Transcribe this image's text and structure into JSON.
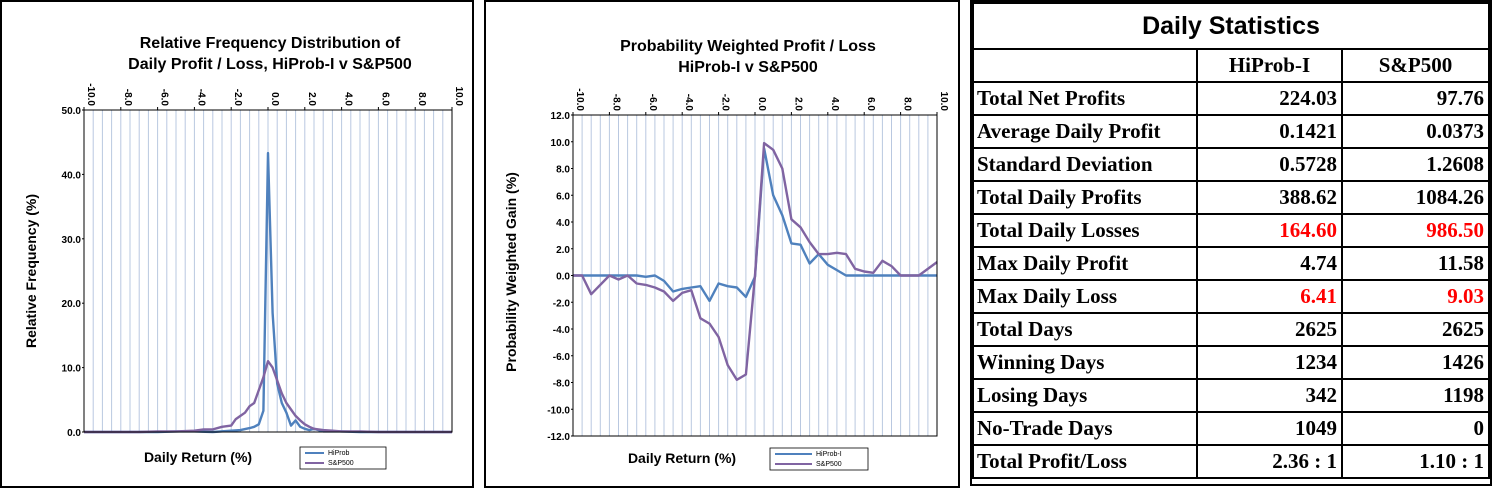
{
  "chart_data": [
    {
      "type": "line",
      "title": "Relative Frequency Distribution    of Daily Profit / Loss,  HiProb-I v S&P500",
      "title_lines": [
        "Relative  Frequency  Distribution    of",
        "Daily Profit / Loss,  HiProb-I v S&P500"
      ],
      "xlabel": "Daily Return  (%)",
      "ylabel": "Relative  Frequency  (%)",
      "xlim": [
        -10,
        10
      ],
      "ylim": [
        0,
        50
      ],
      "x_ticks": [
        "-10.0",
        "-8.0",
        "-6.0",
        "-4.0",
        "-2.0",
        "0.0",
        "2.0",
        "4.0",
        "6.0",
        "8.0",
        "10.0"
      ],
      "y_ticks": [
        "0.0",
        "10.0",
        "20.0",
        "30.0",
        "40.0",
        "50.0"
      ],
      "y_tick_values": [
        0,
        10,
        20,
        30,
        40,
        50
      ],
      "grid": "vertical",
      "legend": "bottom-right",
      "series": [
        {
          "name": "HiProb",
          "color": "#4f81bd",
          "x": [
            -10,
            -6,
            -5,
            -4,
            -3,
            -2,
            -1.5,
            -1,
            -0.75,
            -0.5,
            -0.25,
            0,
            0.25,
            0.5,
            0.75,
            1,
            1.25,
            1.5,
            1.75,
            2,
            2.25,
            2.5,
            3,
            4,
            5,
            10
          ],
          "y": [
            0,
            0,
            0.1,
            0.1,
            0,
            0.2,
            0.3,
            0.6,
            0.8,
            1.2,
            3.3,
            43.3,
            18.5,
            7.5,
            4.5,
            3.0,
            1.0,
            1.8,
            0.8,
            0.5,
            0.3,
            0.5,
            0.1,
            0.1,
            0,
            0
          ]
        },
        {
          "name": "S&P500",
          "color": "#8064a2",
          "x": [
            -10,
            -7,
            -6,
            -5,
            -4,
            -3.5,
            -3,
            -2.5,
            -2,
            -1.75,
            -1.5,
            -1.25,
            -1,
            -0.75,
            -0.5,
            -0.25,
            0,
            0.25,
            0.5,
            0.75,
            1,
            1.25,
            1.5,
            1.75,
            2,
            2.25,
            2.5,
            2.75,
            3,
            3.5,
            4,
            5,
            6,
            10
          ],
          "y": [
            0,
            0,
            0.1,
            0.1,
            0.2,
            0.4,
            0.4,
            0.8,
            1.0,
            2.0,
            2.5,
            3.0,
            4.0,
            4.5,
            6.5,
            8.5,
            11.0,
            10.0,
            8.0,
            6.0,
            4.5,
            3.5,
            2.5,
            1.8,
            1.2,
            0.8,
            0.5,
            0.4,
            0.3,
            0.2,
            0.1,
            0.1,
            0,
            0
          ]
        }
      ]
    },
    {
      "type": "line",
      "title": "Probability Weighted Profit /  Loss HiProb-I   v   S&P500",
      "title_lines": [
        "Probability Weighted Profit /  Loss",
        "HiProb-I   v   S&P500"
      ],
      "xlabel": "Daily Return  (%)",
      "ylabel": "Probability Weighted Gain (%)",
      "xlim": [
        -10,
        10
      ],
      "ylim": [
        -12,
        12
      ],
      "x_ticks": [
        "-10.0",
        "-8.0",
        "-6.0",
        "-4.0",
        "-2.0",
        "0.0",
        "2.0",
        "4.0",
        "6.0",
        "8.0",
        "10.0"
      ],
      "y_ticks": [
        "-12.0",
        "-10.0",
        "-8.0",
        "-6.0",
        "-4.0",
        "-2.0",
        "0.0",
        "2.0",
        "4.0",
        "6.0",
        "8.0",
        "10.0",
        "12.0"
      ],
      "y_tick_values": [
        -12,
        -10,
        -8,
        -6,
        -4,
        -2,
        0,
        2,
        4,
        6,
        8,
        10,
        12
      ],
      "grid": "vertical",
      "legend": "bottom-right",
      "series": [
        {
          "name": "HiProb-I",
          "color": "#4f81bd",
          "x": [
            -10,
            -9,
            -8,
            -7,
            -6.5,
            -6,
            -5.5,
            -5,
            -4.5,
            -4,
            -3.5,
            -3,
            -2.5,
            -2,
            -1.5,
            -1,
            -0.5,
            0,
            0.5,
            1,
            1.5,
            2,
            2.5,
            3,
            3.5,
            4,
            4.5,
            5,
            5.5,
            6,
            7,
            8,
            9,
            10
          ],
          "y": [
            0,
            0,
            0,
            0,
            0,
            -0.1,
            0,
            -0.4,
            -1.2,
            -1.0,
            -0.9,
            -0.8,
            -1.9,
            -0.6,
            -0.8,
            -0.9,
            -1.6,
            -0.1,
            9.5,
            6.0,
            4.5,
            2.4,
            2.3,
            0.9,
            1.6,
            0.8,
            0.4,
            0,
            0,
            0,
            0,
            0,
            0,
            0
          ]
        },
        {
          "name": "S&P500",
          "color": "#8064a2",
          "x": [
            -10,
            -9.5,
            -9,
            -8,
            -7.5,
            -7,
            -6.5,
            -6,
            -5.5,
            -5,
            -4.5,
            -4,
            -3.5,
            -3,
            -2.5,
            -2,
            -1.5,
            -1,
            -0.5,
            0,
            0.5,
            1,
            1.5,
            2,
            2.5,
            3,
            3.5,
            4,
            4.5,
            5,
            5.5,
            6,
            6.5,
            7,
            7.5,
            8,
            9,
            10
          ],
          "y": [
            0,
            0,
            -1.4,
            0,
            -0.3,
            0,
            -0.6,
            -0.7,
            -0.9,
            -1.2,
            -1.9,
            -1.3,
            -1.1,
            -3.2,
            -3.6,
            -4.6,
            -6.7,
            -7.8,
            -7.4,
            0,
            9.9,
            9.4,
            8.0,
            4.2,
            3.6,
            2.5,
            1.6,
            1.6,
            1.7,
            1.6,
            0.5,
            0.3,
            0.2,
            1.1,
            0.7,
            0,
            0,
            1.0
          ]
        }
      ]
    }
  ],
  "stats_table": {
    "title": "Daily Statistics",
    "columns": [
      "HiProb-I",
      "S&P500"
    ],
    "red_color": "#ff0000",
    "rows": [
      {
        "label": "Total Net Profits",
        "values": [
          "224.03",
          "97.76"
        ],
        "red": false
      },
      {
        "label": "Average Daily Profit",
        "values": [
          "0.1421",
          "0.0373"
        ],
        "red": false
      },
      {
        "label": "Standard Deviation",
        "values": [
          "0.5728",
          "1.2608"
        ],
        "red": false
      },
      {
        "label": "Total Daily Profits",
        "values": [
          "388.62",
          "1084.26"
        ],
        "red": false
      },
      {
        "label": "Total Daily Losses",
        "values": [
          "164.60",
          "986.50"
        ],
        "red": true
      },
      {
        "label": "Max Daily Profit",
        "values": [
          "4.74",
          "11.58"
        ],
        "red": false
      },
      {
        "label": "Max Daily Loss",
        "values": [
          "6.41",
          "9.03"
        ],
        "red": true
      },
      {
        "label": "Total Days",
        "values": [
          "2625",
          "2625"
        ],
        "red": false
      },
      {
        "label": "Winning Days",
        "values": [
          "1234",
          "1426"
        ],
        "red": false
      },
      {
        "label": "Losing Days",
        "values": [
          "342",
          "1198"
        ],
        "red": false
      },
      {
        "label": "No-Trade Days",
        "values": [
          "1049",
          "0"
        ],
        "red": false
      },
      {
        "label": "Total Profit/Loss",
        "values": [
          "2.36 : 1",
          "1.10 : 1"
        ],
        "red": false
      }
    ]
  }
}
